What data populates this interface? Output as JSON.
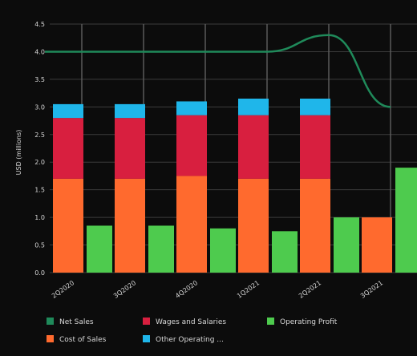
{
  "chart_data": {
    "type": "bar",
    "categories": [
      "2Q2020",
      "3Q2020",
      "4Q2020",
      "1Q2021",
      "2Q2021",
      "3Q2021"
    ],
    "ylabel": "USD (millions)",
    "ylim": [
      0,
      4.5
    ],
    "yticks": [
      "0.0",
      "0.5",
      "1.0",
      "1.5",
      "2.0",
      "2.5",
      "3.0",
      "3.5",
      "4.0",
      "4.5"
    ],
    "grid": true,
    "legend_position": "bottom",
    "stacked_series": [
      {
        "name": "Cost of Sales",
        "color": "#ff6a2e",
        "values": [
          1.7,
          1.7,
          1.75,
          1.7,
          1.7,
          1.0
        ]
      },
      {
        "name": "Wages and Salaries",
        "color": "#d81f3f",
        "values": [
          1.1,
          1.1,
          1.1,
          1.15,
          1.15,
          0
        ]
      },
      {
        "name": "Other Operating ...",
        "color": "#1fb6ea",
        "values": [
          0.25,
          0.25,
          0.25,
          0.3,
          0.3,
          0
        ]
      }
    ],
    "side_series": {
      "name": "Operating Profit",
      "color": "#4ecb4e",
      "values": [
        0.85,
        0.85,
        0.8,
        0.75,
        1.0,
        1.9
      ]
    },
    "line_series": {
      "name": "Net Sales",
      "color": "#1f8a5a",
      "values": [
        4.0,
        4.0,
        4.0,
        4.0,
        4.3,
        3.0
      ]
    },
    "legend": [
      {
        "name": "Net Sales",
        "color": "#1f8a5a"
      },
      {
        "name": "Wages and Salaries",
        "color": "#d81f3f"
      },
      {
        "name": "Operating Profit",
        "color": "#4ecb4e"
      },
      {
        "name": "Cost of Sales",
        "color": "#ff6a2e"
      },
      {
        "name": "Other Operating ...",
        "color": "#1fb6ea"
      }
    ]
  }
}
